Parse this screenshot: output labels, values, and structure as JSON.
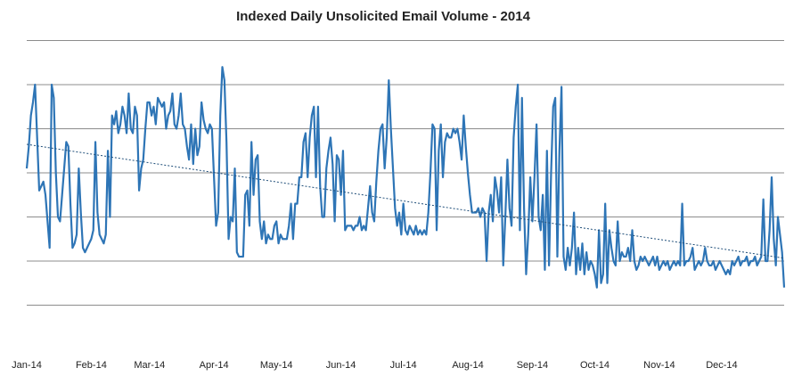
{
  "chart_data": {
    "type": "line",
    "title": "Indexed Daily Unsolicited Email Volume - 2014",
    "categories": [
      "Jan-14",
      null,
      null,
      null,
      null,
      null,
      null,
      null,
      null,
      null,
      null,
      null,
      null,
      null,
      null,
      null,
      null,
      null,
      null,
      null,
      null,
      null,
      null,
      null,
      null,
      null,
      null,
      null,
      null,
      null,
      null,
      "Feb-14",
      null,
      null,
      null,
      null,
      null,
      null,
      null,
      null,
      null,
      null,
      null,
      null,
      null,
      null,
      null,
      null,
      null,
      null,
      null,
      null,
      null,
      null,
      null,
      null,
      null,
      null,
      null,
      "Mar-14",
      null,
      null,
      null,
      null,
      null,
      null,
      null,
      null,
      null,
      null,
      null,
      null,
      null,
      null,
      null,
      null,
      null,
      null,
      null,
      null,
      null,
      null,
      null,
      null,
      null,
      null,
      null,
      null,
      null,
      null,
      "Apr-14",
      null,
      null,
      null,
      null,
      null,
      null,
      null,
      null,
      null,
      null,
      null,
      null,
      null,
      null,
      null,
      null,
      null,
      null,
      null,
      null,
      null,
      null,
      null,
      null,
      null,
      null,
      null,
      null,
      null,
      "May-14",
      null,
      null,
      null,
      null,
      null,
      null,
      null,
      null,
      null,
      null,
      null,
      null,
      null,
      null,
      null,
      null,
      null,
      null,
      null,
      null,
      null,
      null,
      null,
      null,
      null,
      null,
      null,
      null,
      null,
      null,
      "Jun-14",
      null,
      null,
      null,
      null,
      null,
      null,
      null,
      null,
      null,
      null,
      null,
      null,
      null,
      null,
      null,
      null,
      null,
      null,
      null,
      null,
      null,
      null,
      null,
      null,
      null,
      null,
      null,
      null,
      null,
      "Jul-14",
      null,
      null,
      null,
      null,
      null,
      null,
      null,
      null,
      null,
      null,
      null,
      null,
      null,
      null,
      null,
      null,
      null,
      null,
      null,
      null,
      null,
      null,
      null,
      null,
      null,
      null,
      null,
      null,
      null,
      null,
      "Aug-14",
      null,
      null,
      null,
      null,
      null,
      null,
      null,
      null,
      null,
      null,
      null,
      null,
      null,
      null,
      null,
      null,
      null,
      null,
      null,
      null,
      null,
      null,
      null,
      null,
      null,
      null,
      null,
      null,
      null,
      null,
      "Sep-14",
      null,
      null,
      null,
      null,
      null,
      null,
      null,
      null,
      null,
      null,
      null,
      null,
      null,
      null,
      null,
      null,
      null,
      null,
      null,
      null,
      null,
      null,
      null,
      null,
      null,
      null,
      null,
      null,
      null,
      "Oct-14",
      null,
      null,
      null,
      null,
      null,
      null,
      null,
      null,
      null,
      null,
      null,
      null,
      null,
      null,
      null,
      null,
      null,
      null,
      null,
      null,
      null,
      null,
      null,
      null,
      null,
      null,
      null,
      null,
      null,
      null,
      "Nov-14",
      null,
      null,
      null,
      null,
      null,
      null,
      null,
      null,
      null,
      null,
      null,
      null,
      null,
      null,
      null,
      null,
      null,
      null,
      null,
      null,
      null,
      null,
      null,
      null,
      null,
      null,
      null,
      null,
      null,
      "Dec-14",
      null,
      null,
      null,
      null,
      null,
      null,
      null,
      null,
      null,
      null,
      null,
      null,
      null,
      null,
      null,
      null,
      null,
      null,
      null,
      null,
      null,
      null,
      null,
      null,
      null,
      null,
      null,
      null,
      null,
      null
    ],
    "values": [
      4.1,
      4.6,
      5.3,
      5.6,
      6.0,
      4.8,
      3.6,
      3.7,
      3.8,
      3.5,
      2.9,
      2.3,
      6.0,
      5.7,
      4.0,
      3.0,
      2.9,
      3.5,
      4.1,
      4.7,
      4.6,
      3.3,
      2.3,
      2.4,
      2.6,
      4.1,
      3.1,
      2.3,
      2.2,
      2.3,
      2.4,
      2.5,
      2.7,
      4.7,
      3.1,
      2.6,
      2.5,
      2.4,
      2.6,
      4.5,
      3.0,
      5.3,
      5.1,
      5.4,
      4.9,
      5.1,
      5.5,
      5.3,
      4.9,
      5.8,
      5.0,
      4.9,
      5.5,
      5.3,
      3.6,
      4.1,
      4.3,
      5.0,
      5.6,
      5.6,
      5.3,
      5.5,
      5.1,
      5.7,
      5.6,
      5.5,
      5.6,
      5.0,
      5.3,
      5.4,
      5.8,
      5.1,
      5.0,
      5.3,
      5.8,
      5.1,
      5.0,
      4.6,
      4.3,
      5.1,
      4.2,
      5.0,
      4.4,
      4.6,
      5.6,
      5.2,
      5.0,
      4.9,
      5.1,
      5.0,
      3.9,
      2.8,
      3.1,
      5.3,
      6.4,
      6.1,
      4.7,
      2.5,
      3.0,
      2.9,
      4.1,
      2.2,
      2.1,
      2.1,
      2.1,
      3.5,
      3.6,
      2.8,
      4.7,
      3.5,
      4.3,
      4.4,
      2.9,
      2.5,
      2.9,
      2.4,
      2.6,
      2.5,
      2.5,
      2.8,
      2.9,
      2.4,
      2.6,
      2.5,
      2.5,
      2.5,
      2.8,
      3.3,
      2.5,
      3.3,
      3.3,
      3.9,
      3.9,
      4.7,
      4.9,
      3.9,
      4.8,
      5.3,
      5.5,
      3.9,
      5.5,
      3.7,
      3.0,
      3.0,
      4.1,
      4.5,
      4.8,
      4.2,
      2.9,
      4.4,
      4.3,
      3.5,
      4.5,
      2.7,
      2.8,
      2.8,
      2.8,
      2.7,
      2.8,
      2.8,
      3.0,
      2.7,
      2.8,
      2.7,
      3.2,
      3.7,
      3.1,
      2.9,
      3.8,
      4.5,
      5.0,
      5.1,
      4.1,
      4.8,
      6.1,
      5.0,
      4.1,
      3.2,
      2.8,
      3.1,
      2.6,
      3.3,
      2.7,
      2.6,
      2.8,
      2.7,
      2.6,
      2.8,
      2.6,
      2.7,
      2.6,
      2.7,
      2.6,
      3.1,
      4.0,
      5.1,
      5.0,
      2.7,
      4.5,
      5.1,
      3.9,
      4.7,
      4.9,
      4.8,
      4.8,
      5.0,
      4.9,
      5.0,
      4.7,
      4.3,
      5.3,
      4.6,
      4.0,
      3.5,
      3.1,
      3.1,
      3.1,
      3.2,
      3.0,
      3.2,
      3.1,
      2.0,
      3.1,
      3.5,
      2.9,
      3.9,
      3.6,
      3.1,
      3.9,
      1.9,
      3.0,
      4.3,
      3.2,
      2.8,
      4.8,
      5.5,
      6.0,
      2.7,
      5.7,
      3.2,
      1.7,
      2.6,
      3.9,
      2.9,
      3.9,
      5.1,
      3.0,
      2.7,
      3.5,
      1.8,
      4.5,
      1.9,
      4.0,
      5.5,
      5.7,
      2.1,
      4.5,
      5.95,
      2.1,
      1.8,
      2.3,
      1.9,
      2.3,
      3.1,
      1.7,
      2.3,
      1.8,
      2.4,
      1.7,
      2.2,
      1.8,
      2.0,
      1.9,
      1.7,
      1.4,
      2.7,
      1.5,
      1.7,
      3.3,
      1.5,
      2.7,
      2.3,
      2.0,
      1.9,
      2.9,
      2.0,
      2.2,
      2.1,
      2.1,
      2.3,
      2.0,
      2.7,
      2.0,
      1.8,
      1.9,
      2.1,
      2.0,
      2.1,
      2.0,
      1.9,
      2.0,
      2.1,
      1.9,
      2.1,
      1.8,
      1.9,
      2.0,
      1.9,
      2.0,
      1.8,
      1.9,
      2.0,
      1.9,
      2.0,
      1.9,
      3.3,
      1.9,
      2.0,
      2.0,
      2.1,
      2.3,
      1.8,
      1.9,
      2.0,
      1.9,
      2.0,
      2.3,
      2.0,
      1.9,
      1.9,
      2.0,
      1.8,
      1.9,
      2.0,
      1.9,
      1.8,
      1.7,
      1.8,
      1.7,
      2.0,
      1.9,
      2.0,
      2.1,
      1.9,
      2.0,
      2.0,
      2.1,
      1.9,
      2.0,
      2.0,
      2.1,
      1.9,
      2.0,
      2.1,
      3.4,
      2.0,
      2.0,
      2.7,
      3.9,
      2.5,
      1.9,
      3.0,
      2.6,
      2.2,
      1.4
    ],
    "color": "#2e75b6",
    "trendline_color": "#1f4e79",
    "trendline": "linear",
    "ylim": [
      0,
      7
    ],
    "yticks": [
      1,
      2,
      3,
      4,
      5,
      6,
      7
    ],
    "grid": true
  }
}
